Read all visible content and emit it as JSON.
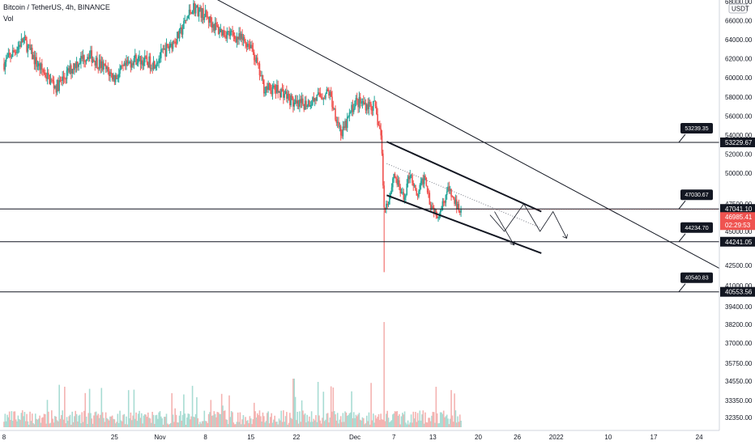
{
  "header": {
    "symbol_line": "Bitcoin / TetherUS, 4h, BINANCE",
    "vol_label": "Vol"
  },
  "axis": {
    "currency_badge": "USDT",
    "price_ticks": [
      {
        "label": "68000.00",
        "v": 68000
      },
      {
        "label": "66000.00",
        "v": 66000
      },
      {
        "label": "64000.00",
        "v": 64000
      },
      {
        "label": "62000.00",
        "v": 62000
      },
      {
        "label": "60000.00",
        "v": 60000
      },
      {
        "label": "58000.00",
        "v": 58000
      },
      {
        "label": "56000.00",
        "v": 56000
      },
      {
        "label": "54000.00",
        "v": 54000
      },
      {
        "label": "52000.00",
        "v": 52000
      },
      {
        "label": "50000.00",
        "v": 50000
      },
      {
        "label": "47500.00",
        "v": 47500
      },
      {
        "label": "45000.00",
        "v": 45000
      },
      {
        "label": "42500.00",
        "v": 42500
      },
      {
        "label": "41000.00",
        "v": 41000
      },
      {
        "label": "39400.00",
        "v": 39400
      },
      {
        "label": "38200.00",
        "v": 38200
      },
      {
        "label": "37000.00",
        "v": 37000
      },
      {
        "label": "35750.00",
        "v": 35750
      },
      {
        "label": "34550.00",
        "v": 34550
      },
      {
        "label": "33350.00",
        "v": 33350
      },
      {
        "label": "32350.00",
        "v": 32350
      }
    ],
    "date_ticks": [
      {
        "label": "8",
        "d": 0
      },
      {
        "label": "25",
        "d": 17
      },
      {
        "label": "Nov",
        "d": 24
      },
      {
        "label": "8",
        "d": 31
      },
      {
        "label": "15",
        "d": 38
      },
      {
        "label": "22",
        "d": 45
      },
      {
        "label": "Dec",
        "d": 54
      },
      {
        "label": "7",
        "d": 60
      },
      {
        "label": "13",
        "d": 66
      },
      {
        "label": "20",
        "d": 73
      },
      {
        "label": "26",
        "d": 79
      },
      {
        "label": "2022",
        "d": 85
      },
      {
        "label": "10",
        "d": 93
      },
      {
        "label": "17",
        "d": 100
      },
      {
        "label": "24",
        "d": 107
      }
    ]
  },
  "levels": [
    {
      "price": 53229.67,
      "label": "53229.67",
      "flag": "53239.35"
    },
    {
      "price": 47041.1,
      "label": "47041.10",
      "flag": "47030.67"
    },
    {
      "price": 44241.05,
      "label": "44241.05",
      "flag": "44234.70"
    },
    {
      "price": 40553.56,
      "label": "40553.56",
      "flag": "40540.83"
    }
  ],
  "current": {
    "price_label": "46985.41",
    "countdown": "02:29:53",
    "color": "#ef5350"
  },
  "colors": {
    "up": "#26a69a",
    "down": "#ef5350",
    "vol_up": "#a8dcd3",
    "vol_down": "#f4b3b1",
    "line": "#131722"
  },
  "chart_data": {
    "type": "candlestick",
    "title": "Bitcoin / TetherUS, 4h, BINANCE",
    "price_ylim": [
      40000,
      68500
    ],
    "path": [
      [
        0,
        61500
      ],
      [
        3,
        64000
      ],
      [
        5,
        61500
      ],
      [
        8,
        59000
      ],
      [
        11,
        61500
      ],
      [
        13,
        62500
      ],
      [
        17,
        60000
      ],
      [
        20,
        62000
      ],
      [
        23,
        61500
      ],
      [
        27,
        64500
      ],
      [
        29,
        67500
      ],
      [
        31,
        66500
      ],
      [
        33,
        65000
      ],
      [
        35,
        64500
      ],
      [
        38,
        63500
      ],
      [
        40,
        59000
      ],
      [
        43,
        58500
      ],
      [
        45,
        57000
      ],
      [
        47,
        57500
      ],
      [
        50,
        58500
      ],
      [
        52,
        54000
      ],
      [
        54,
        57500
      ],
      [
        57,
        57000
      ],
      [
        58,
        54000
      ],
      [
        58.5,
        47000
      ],
      [
        59.3,
        48000
      ],
      [
        60,
        50000
      ],
      [
        61.5,
        47800
      ],
      [
        62.5,
        50200
      ],
      [
        63.5,
        48000
      ],
      [
        64.8,
        49900
      ],
      [
        65.6,
        47500
      ],
      [
        66.8,
        46500
      ],
      [
        67.5,
        47500
      ],
      [
        68.3,
        48700
      ],
      [
        69,
        48000
      ],
      [
        69.7,
        47300
      ],
      [
        70.4,
        46985
      ]
    ],
    "events": [
      {
        "label": "drop low",
        "d": 58.5,
        "price": 42000
      }
    ],
    "trendlines": [
      {
        "from": [
          32,
          68500
        ],
        "to": [
          112,
          41800
        ]
      },
      {
        "from": [
          58.9,
          53300
        ],
        "to": [
          82.7,
          46800
        ]
      },
      {
        "from": [
          58.9,
          48200
        ],
        "to": [
          82.7,
          43400
        ]
      }
    ],
    "projection_path": [
      [
        74.8,
        46500
      ],
      [
        77,
        45000
      ],
      [
        80,
        47500
      ],
      [
        82.5,
        45000
      ],
      [
        84.5,
        46800
      ],
      [
        86.6,
        44500
      ]
    ],
    "projection_alt_path": [
      [
        75.5,
        46800
      ],
      [
        78.5,
        44000
      ]
    ],
    "midline": {
      "from": [
        58.9,
        51000
      ],
      "to": [
        82.7,
        45300
      ]
    }
  }
}
